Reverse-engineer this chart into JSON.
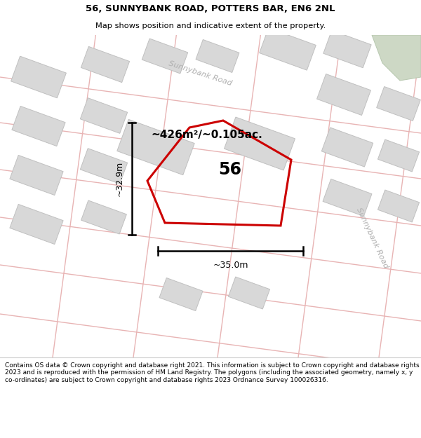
{
  "title_line1": "56, SUNNYBANK ROAD, POTTERS BAR, EN6 2NL",
  "title_line2": "Map shows position and indicative extent of the property.",
  "area_text": "~426m²/~0.105ac.",
  "number_label": "56",
  "dim_width": "~35.0m",
  "dim_height": "~32.9m",
  "road_label_top": "Sunnybank Road",
  "road_label_bottom": "Sunnybank Road",
  "footer_text": "Contains OS data © Crown copyright and database right 2021. This information is subject to Crown copyright and database rights 2023 and is reproduced with the permission of HM Land Registry. The polygons (including the associated geometry, namely x, y co-ordinates) are subject to Crown copyright and database rights 2023 Ordnance Survey 100026316.",
  "bg_map_color": "#f0ece6",
  "building_color": "#d8d8d8",
  "building_edge_color": "#c0c0c0",
  "road_line_color": "#e8b4b4",
  "road_fill_color": "#f0e8e4",
  "highlight_polygon_edge": "#cc0000",
  "highlight_polygon_fill": "none",
  "footer_bg": "#ffffff",
  "green_color": "#cdd8c5"
}
